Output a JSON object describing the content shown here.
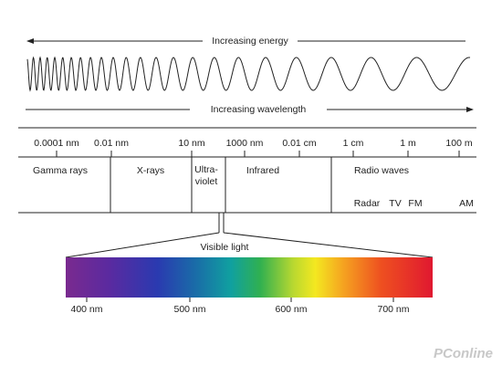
{
  "header": {
    "energy": "Increasing energy",
    "wavelength": "Increasing wavelength"
  },
  "scale": [
    "0.0001 nm",
    "0.01 nm",
    "10 nm",
    "1000 nm",
    "0.01 cm",
    "1 cm",
    "1 m",
    "100 m"
  ],
  "bands": [
    "Gamma rays",
    "X-rays",
    "Ultra-",
    "violet",
    "Infrared",
    "Radio waves"
  ],
  "radio": [
    "Radar",
    "TV",
    "FM",
    "AM"
  ],
  "visible": {
    "title": "Visible light",
    "ticks": [
      "400 nm",
      "500 nm",
      "600 nm",
      "700 nm"
    ]
  },
  "watermark": "PConline"
}
